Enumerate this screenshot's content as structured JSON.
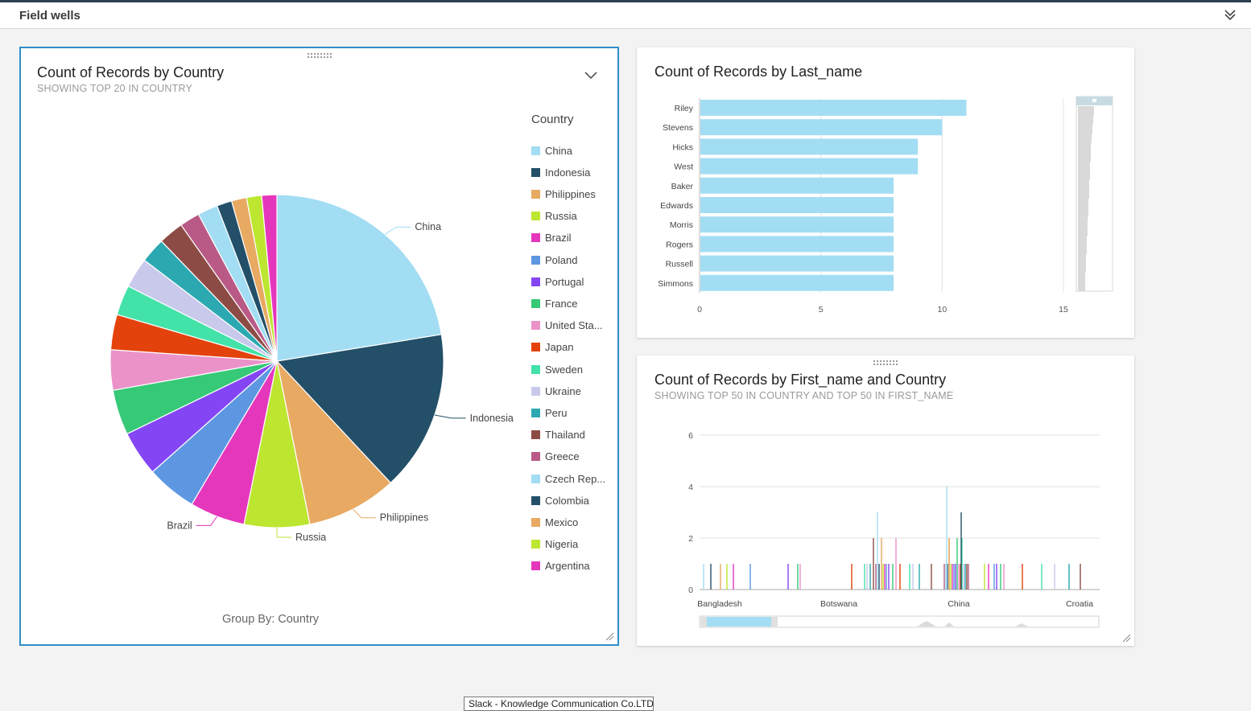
{
  "field_wells": {
    "title": "Field wells"
  },
  "panels": {
    "country_pie": {
      "title": "Count of Records by Country",
      "subtitle": "SHOWING TOP 20 IN COUNTRY",
      "legend_title": "Country",
      "group_by": "Group By: Country"
    },
    "last_name_bar": {
      "title": "Count of Records by Last_name"
    },
    "first_name_country": {
      "title": "Count of Records by First_name and Country",
      "subtitle": "SHOWING TOP 50 IN COUNTRY AND TOP 50 IN FIRST_NAME"
    }
  },
  "tooltip": {
    "text": "Slack - Knowledge Communication Co.LTD"
  },
  "colors": {
    "accent": "#2e8fc7",
    "bar": "#a2ddf3"
  },
  "chart_data": [
    {
      "type": "pie",
      "title": "Count of Records by Country",
      "subtitle": "SHOWING TOP 20 IN COUNTRY",
      "legend_title": "Country",
      "legend_position": "right",
      "slices": [
        {
          "label": "China",
          "legend": "China",
          "value": 23,
          "color": "#a2ddf3",
          "show_label": true
        },
        {
          "label": "Indonesia",
          "legend": "Indonesia",
          "value": 16,
          "color": "#235068",
          "show_label": true
        },
        {
          "label": "Philippines",
          "legend": "Philippines",
          "value": 9,
          "color": "#e8a963",
          "show_label": true
        },
        {
          "label": "Russia",
          "legend": "Russia",
          "value": 6.5,
          "color": "#bde630",
          "show_label": true
        },
        {
          "label": "Brazil",
          "legend": "Brazil",
          "value": 5.5,
          "color": "#e537bc",
          "show_label": true
        },
        {
          "label": "Poland",
          "legend": "Poland",
          "value": 5,
          "color": "#5e97e1",
          "show_label": false
        },
        {
          "label": "Portugal",
          "legend": "Portugal",
          "value": 4.5,
          "color": "#8446f5",
          "show_label": false
        },
        {
          "label": "France",
          "legend": "France",
          "value": 4.5,
          "color": "#36c977",
          "show_label": false
        },
        {
          "label": "United States",
          "legend": "United Sta...",
          "value": 4,
          "color": "#eb92c9",
          "show_label": false
        },
        {
          "label": "Japan",
          "legend": "Japan",
          "value": 3.5,
          "color": "#e3420c",
          "show_label": false
        },
        {
          "label": "Sweden",
          "legend": "Sweden",
          "value": 3,
          "color": "#43e2a8",
          "show_label": false
        },
        {
          "label": "Ukraine",
          "legend": "Ukraine",
          "value": 3,
          "color": "#c9c9ec",
          "show_label": false
        },
        {
          "label": "Peru",
          "legend": "Peru",
          "value": 2.5,
          "color": "#2ca8b1",
          "show_label": false
        },
        {
          "label": "Thailand",
          "legend": "Thailand",
          "value": 2.5,
          "color": "#8c4c45",
          "show_label": false
        },
        {
          "label": "Greece",
          "legend": "Greece",
          "value": 2,
          "color": "#b95a86",
          "show_label": false
        },
        {
          "label": "Czech Republic",
          "legend": "Czech Rep...",
          "value": 2,
          "color": "#a2ddf3",
          "show_label": false
        },
        {
          "label": "Colombia",
          "legend": "Colombia",
          "value": 1.5,
          "color": "#235068",
          "show_label": false
        },
        {
          "label": "Mexico",
          "legend": "Mexico",
          "value": 1.5,
          "color": "#e8a963",
          "show_label": false
        },
        {
          "label": "Nigeria",
          "legend": "Nigeria",
          "value": 1.5,
          "color": "#bde630",
          "show_label": false
        },
        {
          "label": "Argentina",
          "legend": "Argentina",
          "value": 1.5,
          "color": "#e537bc",
          "show_label": false
        }
      ],
      "footer": "Group By: Country"
    },
    {
      "type": "bar",
      "orientation": "horizontal",
      "title": "Count of Records by Last_name",
      "categories": [
        "Riley",
        "Stevens",
        "Hicks",
        "West",
        "Baker",
        "Edwards",
        "Morris",
        "Rogers",
        "Russell",
        "Simmons"
      ],
      "values": [
        11,
        10,
        9,
        9,
        8,
        8,
        8,
        8,
        8,
        8
      ],
      "xlim": [
        0,
        15
      ],
      "xticks": [
        0,
        5,
        10,
        15
      ],
      "grid": true,
      "color": "#a2ddf3"
    },
    {
      "type": "bar",
      "title": "Count of Records by First_name and Country",
      "subtitle": "SHOWING TOP 50 IN COUNTRY AND TOP 50 IN FIRST_NAME",
      "x_tick_labels": [
        "Bangladesh",
        "Botswana",
        "China",
        "Croatia"
      ],
      "ylim": [
        0,
        6
      ],
      "yticks": [
        0,
        2,
        4,
        6
      ],
      "grid": true,
      "series_palette": [
        "#a2ddf3",
        "#235068",
        "#e8a963",
        "#bde630",
        "#e537bc",
        "#5e97e1",
        "#8446f5",
        "#36c977",
        "#eb92c9",
        "#e3420c",
        "#43e2a8",
        "#c9c9ec",
        "#2ca8b1",
        "#8c4c45",
        "#b95a86"
      ],
      "values_summary": "many narrow bars mostly of value 1, a few reaching 2 or 3, one reaching 4 near China"
    }
  ]
}
